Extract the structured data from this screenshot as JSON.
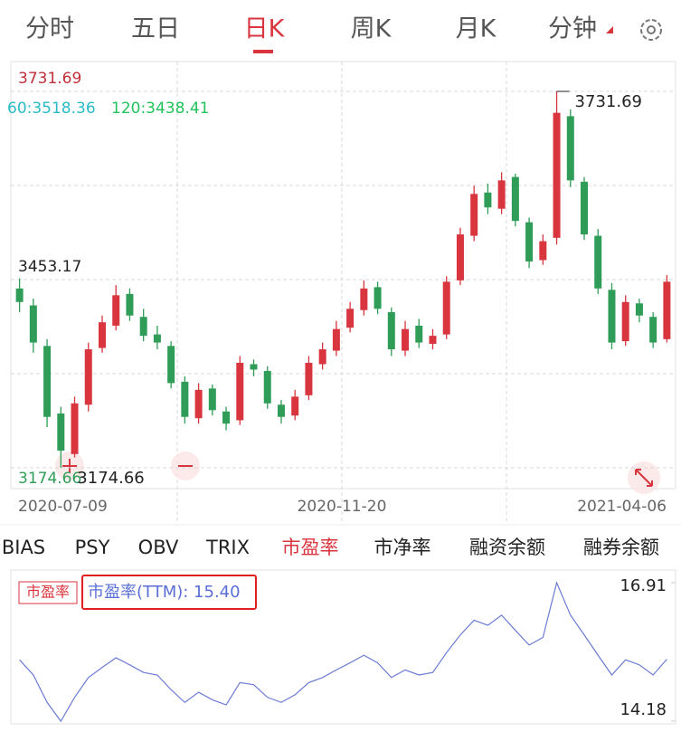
{
  "tabs": {
    "items": [
      "分时",
      "五日",
      "日K",
      "周K",
      "月K",
      "分钟"
    ],
    "active": 2
  },
  "chart_data": {
    "type": "candlestick",
    "ma_labels": [
      "60:3518.36",
      "120:3438.41"
    ],
    "ylim": [
      3174.66,
      3731.69
    ],
    "yticks": [
      3731.69,
      3453.17,
      3174.66
    ],
    "grid": true,
    "x_labels": [
      "2020-07-09",
      "2020-11-20",
      "2021-04-06"
    ],
    "high_label": "3731.69",
    "low_label": "3174.66",
    "up_color": "#d9353f",
    "down_color": "#2f9d57",
    "open": [
      3440,
      3415,
      3355,
      3255,
      3195,
      3268,
      3352,
      3385,
      3432,
      3398,
      3372,
      3355,
      3302,
      3248,
      3292,
      3258,
      3245,
      3328,
      3318,
      3268,
      3252,
      3282,
      3328,
      3348,
      3382,
      3408,
      3442,
      3405,
      3348,
      3385,
      3358,
      3372,
      3452,
      3518,
      3582,
      3558,
      3605,
      3538,
      3482,
      3515,
      3695,
      3598,
      3518,
      3438,
      3362,
      3418,
      3398,
      3365
    ],
    "high": [
      3455,
      3425,
      3365,
      3265,
      3280,
      3360,
      3400,
      3445,
      3440,
      3410,
      3385,
      3362,
      3310,
      3300,
      3298,
      3265,
      3340,
      3335,
      3325,
      3275,
      3290,
      3340,
      3360,
      3392,
      3420,
      3452,
      3450,
      3412,
      3392,
      3395,
      3380,
      3458,
      3530,
      3592,
      3595,
      3612,
      3610,
      3545,
      3520,
      3731.69,
      3705,
      3605,
      3528,
      3448,
      3430,
      3425,
      3405,
      3460
    ],
    "low": [
      3405,
      3345,
      3235,
      3174.66,
      3190,
      3258,
      3345,
      3378,
      3392,
      3362,
      3350,
      3292,
      3240,
      3240,
      3252,
      3230,
      3238,
      3310,
      3262,
      3240,
      3245,
      3275,
      3320,
      3340,
      3375,
      3400,
      3402,
      3340,
      3340,
      3352,
      3350,
      3365,
      3445,
      3510,
      3550,
      3550,
      3532,
      3470,
      3475,
      3505,
      3590,
      3512,
      3432,
      3350,
      3355,
      3390,
      3352,
      3360
    ],
    "close": [
      3420,
      3360,
      3250,
      3200,
      3270,
      3350,
      3390,
      3430,
      3400,
      3370,
      3360,
      3300,
      3250,
      3290,
      3260,
      3240,
      3330,
      3320,
      3270,
      3250,
      3280,
      3330,
      3350,
      3380,
      3410,
      3440,
      3410,
      3350,
      3380,
      3360,
      3370,
      3450,
      3520,
      3580,
      3560,
      3600,
      3540,
      3480,
      3510,
      3700,
      3600,
      3520,
      3440,
      3360,
      3420,
      3400,
      3360,
      3450
    ]
  },
  "indicator_tabs": {
    "items": [
      "BIAS",
      "PSY",
      "OBV",
      "TRIX",
      "市盈率",
      "市净率",
      "融资余额",
      "融券余额"
    ],
    "active": 4
  },
  "pe_chart": {
    "type": "line",
    "badge": "市盈率",
    "label": "市盈率(TTM): 15.40",
    "color": "#6a7bd3",
    "ylim": [
      14.18,
      16.91
    ],
    "yticks": [
      16.91,
      14.18
    ],
    "values": [
      15.39,
      15.09,
      14.55,
      14.18,
      14.65,
      15.04,
      15.24,
      15.43,
      15.29,
      15.14,
      15.09,
      14.8,
      14.55,
      14.75,
      14.6,
      14.5,
      14.94,
      14.9,
      14.65,
      14.55,
      14.7,
      14.94,
      15.04,
      15.19,
      15.33,
      15.48,
      15.33,
      15.04,
      15.19,
      15.09,
      15.14,
      15.53,
      15.88,
      16.17,
      16.07,
      16.27,
      15.97,
      15.68,
      15.83,
      16.91,
      16.27,
      15.88,
      15.48,
      15.09,
      15.39,
      15.29,
      15.09,
      15.4
    ]
  }
}
